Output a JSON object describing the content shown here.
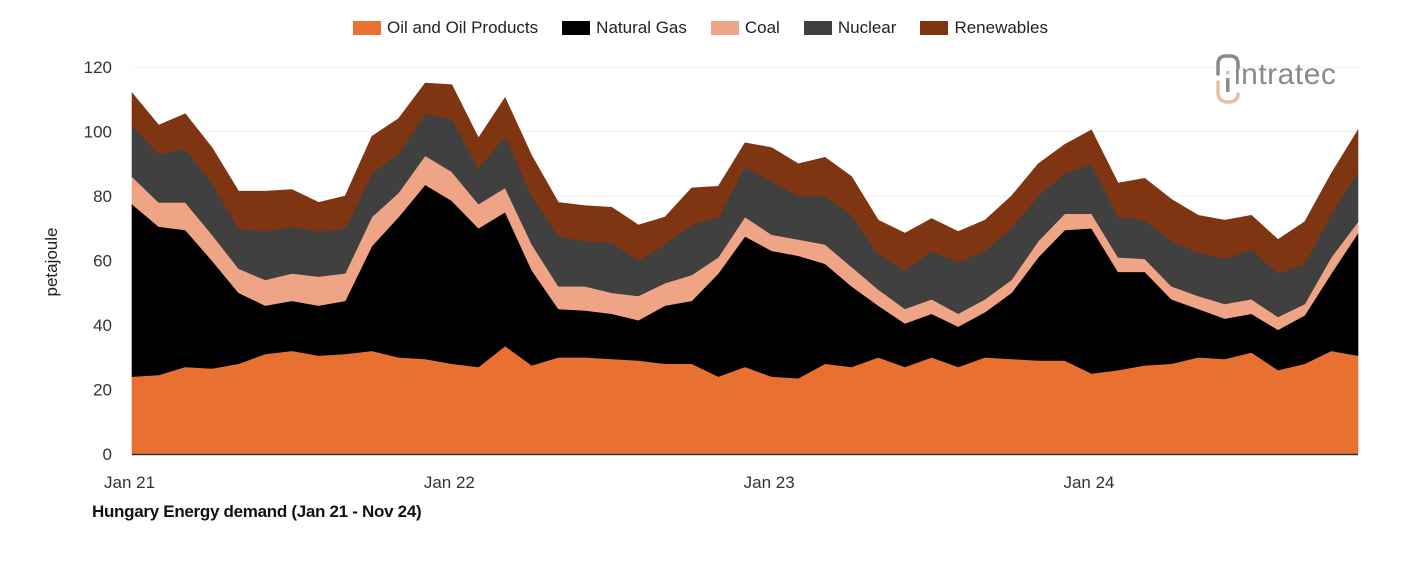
{
  "chart_data": {
    "type": "area",
    "stacked": true,
    "title": "Hungary Energy demand (Jan 21 - Nov 24)",
    "xlabel": "",
    "ylabel": "petajoule",
    "ylim": [
      0,
      120
    ],
    "yticks": [
      0,
      20,
      40,
      60,
      80,
      100,
      120
    ],
    "xtick_labels": [
      {
        "index": 0,
        "label": "Jan 21"
      },
      {
        "index": 12,
        "label": "Jan 22"
      },
      {
        "index": 24,
        "label": "Jan 23"
      },
      {
        "index": 36,
        "label": "Jan 24"
      }
    ],
    "x": [
      "Jan 21",
      "Feb 21",
      "Mar 21",
      "Apr 21",
      "May 21",
      "Jun 21",
      "Jul 21",
      "Aug 21",
      "Sep 21",
      "Oct 21",
      "Nov 21",
      "Dec 21",
      "Jan 22",
      "Feb 22",
      "Mar 22",
      "Apr 22",
      "May 22",
      "Jun 22",
      "Jul 22",
      "Aug 22",
      "Sep 22",
      "Oct 22",
      "Nov 22",
      "Dec 22",
      "Jan 23",
      "Feb 23",
      "Mar 23",
      "Apr 23",
      "May 23",
      "Jun 23",
      "Jul 23",
      "Aug 23",
      "Sep 23",
      "Oct 23",
      "Nov 23",
      "Dec 23",
      "Jan 24",
      "Feb 24",
      "Mar 24",
      "Apr 24",
      "May 24",
      "Jun 24",
      "Jul 24",
      "Aug 24",
      "Sep 24",
      "Oct 24",
      "Nov 24"
    ],
    "legend_position": "top-center",
    "grid": false,
    "series": [
      {
        "name": "Oil and Oil Products",
        "color": "#E87131",
        "values": [
          24,
          24.5,
          27,
          26.5,
          28,
          31,
          32,
          30.5,
          31,
          32,
          30,
          29.5,
          28,
          27,
          33.5,
          27.5,
          30,
          30,
          29.5,
          29,
          28,
          28,
          24,
          27,
          24,
          23.5,
          28,
          27,
          30,
          27,
          30,
          27,
          30,
          29.5,
          29,
          29,
          25,
          26,
          27.5,
          28,
          30,
          29.5,
          31.5,
          26,
          28,
          32,
          30.5
        ]
      },
      {
        "name": "Natural Gas",
        "color": "#000000",
        "values": [
          53.5,
          46,
          42.5,
          33.5,
          22,
          15,
          15.5,
          15.5,
          16.5,
          32.5,
          43.5,
          54,
          50.5,
          43,
          41.5,
          29.5,
          15,
          14.5,
          14,
          12.5,
          18,
          19.5,
          32,
          40.5,
          39,
          38,
          31,
          25,
          16,
          13.5,
          13.5,
          12.5,
          14,
          20.5,
          32,
          40.5,
          45,
          30.5,
          29,
          20,
          15,
          12.5,
          12,
          12.5,
          15,
          24,
          38
        ]
      },
      {
        "name": "Coal",
        "color": "#EFA585",
        "values": [
          8.5,
          7.5,
          8.5,
          8,
          7.5,
          8,
          8.5,
          9,
          8.5,
          9,
          7.5,
          9,
          9,
          7.5,
          7.5,
          8,
          7,
          7.5,
          6.5,
          7.5,
          7,
          8,
          5,
          6,
          5,
          5,
          6,
          6,
          5,
          4.5,
          4.5,
          4,
          4,
          4,
          5,
          5,
          4.5,
          4.5,
          4,
          4,
          4,
          4.5,
          4.5,
          4,
          3.5,
          5,
          3.5
        ]
      },
      {
        "name": "Nuclear",
        "color": "#404040",
        "values": [
          16,
          15,
          16.5,
          16,
          12.5,
          15,
          14.5,
          14,
          14,
          13.5,
          12,
          13,
          16.5,
          11,
          16,
          15,
          15.5,
          14,
          15.5,
          11,
          12,
          15.5,
          12.5,
          15.5,
          16.5,
          13.5,
          15,
          16,
          11,
          12,
          15,
          16,
          15,
          16,
          14,
          12.5,
          15.5,
          12.5,
          12,
          14,
          13.5,
          14,
          15.5,
          13.5,
          12.5,
          13.5,
          15.5
        ]
      },
      {
        "name": "Renewables",
        "color": "#7F3511",
        "values": [
          10,
          9,
          11,
          11,
          11.5,
          12.5,
          11.5,
          9,
          10,
          11.5,
          11,
          9.5,
          10.5,
          9.5,
          12,
          12.5,
          10.5,
          11,
          11,
          11,
          8.5,
          11.5,
          9.5,
          7.5,
          10.5,
          10,
          12,
          12,
          10.5,
          11.5,
          10,
          9.5,
          9.5,
          10,
          10,
          9,
          10.5,
          10.5,
          13,
          13,
          11.5,
          12,
          10.5,
          10.5,
          13,
          12.5,
          13
        ]
      }
    ]
  },
  "legend": {
    "items": [
      {
        "label": "Oil and Oil Products",
        "color": "#E87131"
      },
      {
        "label": "Natural Gas",
        "color": "#000000"
      },
      {
        "label": "Coal",
        "color": "#EFA585"
      },
      {
        "label": "Nuclear",
        "color": "#404040"
      },
      {
        "label": "Renewables",
        "color": "#7F3511"
      }
    ]
  },
  "logo": {
    "text": "intratec"
  },
  "caption": "Hungary Energy demand (Jan 21 - Nov 24)",
  "yaxis_label": "petajoule"
}
